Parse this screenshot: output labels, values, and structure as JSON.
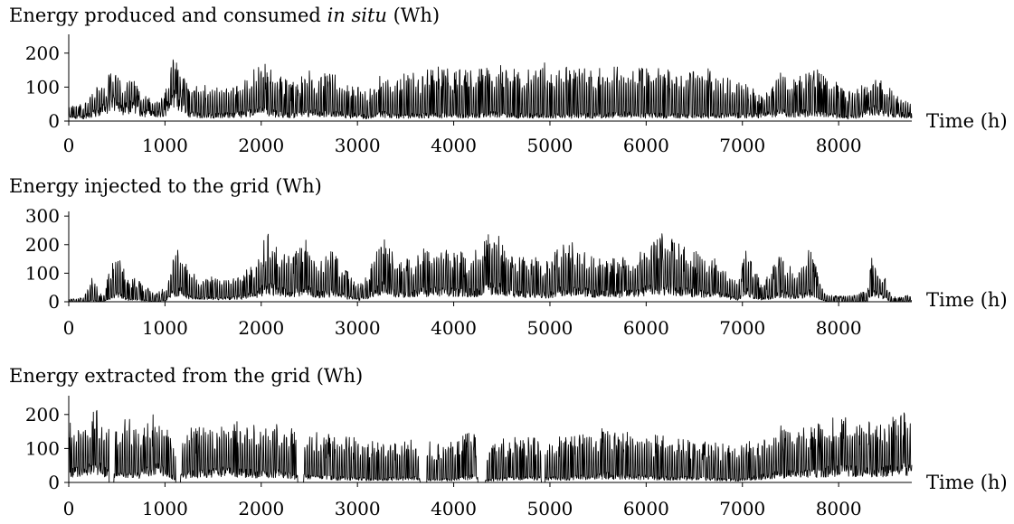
{
  "chart_data": [
    {
      "type": "line",
      "title": "Energy produced and consumed",
      "title_italic": "in situ",
      "title_unit": "(Wh)",
      "xlabel": "Time (h)",
      "ylabel": "",
      "xlim": [
        0,
        8760
      ],
      "ylim": [
        0,
        250
      ],
      "xticks": [
        0,
        1000,
        2000,
        3000,
        4000,
        5000,
        6000,
        7000,
        8000
      ],
      "yticks": [
        0,
        100,
        200
      ],
      "grid": false,
      "series": [
        {
          "color": "#000000",
          "style": "hourly-spiky",
          "envelope_x": [
            0,
            150,
            250,
            400,
            480,
            560,
            650,
            750,
            900,
            1000,
            1080,
            1150,
            1250,
            1400,
            1600,
            1800,
            1900,
            2000,
            2100,
            2200,
            2300,
            2500,
            2700,
            2800,
            2900,
            3000,
            3100,
            3250,
            3400,
            3600,
            3800,
            4000,
            4200,
            4400,
            4600,
            4800,
            4900,
            5000,
            5200,
            5400,
            5600,
            5800,
            6000,
            6200,
            6400,
            6600,
            6800,
            7000,
            7100,
            7200,
            7300,
            7400,
            7500,
            7600,
            7800,
            8000,
            8100,
            8200,
            8300,
            8400,
            8500,
            8600,
            8760
          ],
          "envelope_y": [
            45,
            50,
            100,
            130,
            165,
            110,
            140,
            80,
            75,
            85,
            200,
            170,
            95,
            110,
            100,
            120,
            150,
            170,
            165,
            140,
            110,
            150,
            145,
            140,
            105,
            120,
            90,
            140,
            135,
            150,
            160,
            165,
            150,
            170,
            160,
            150,
            190,
            155,
            160,
            160,
            160,
            165,
            160,
            160,
            140,
            160,
            140,
            130,
            100,
            80,
            95,
            180,
            120,
            140,
            160,
            110,
            95,
            100,
            115,
            150,
            110,
            75,
            65
          ],
          "base_y": [
            15,
            15,
            25,
            50,
            60,
            40,
            55,
            30,
            25,
            30,
            90,
            70,
            25,
            20,
            20,
            25,
            30,
            35,
            30,
            25,
            20,
            30,
            25,
            25,
            20,
            20,
            15,
            25,
            20,
            20,
            20,
            20,
            20,
            25,
            20,
            20,
            20,
            20,
            20,
            20,
            20,
            25,
            20,
            20,
            20,
            20,
            20,
            20,
            20,
            20,
            25,
            35,
            25,
            30,
            25,
            20,
            15,
            20,
            35,
            45,
            30,
            25,
            20
          ]
        }
      ]
    },
    {
      "type": "line",
      "title": "Energy injected to the grid (Wh)",
      "xlabel": "Time (h)",
      "ylabel": "",
      "xlim": [
        0,
        8760
      ],
      "ylim": [
        0,
        310
      ],
      "xticks": [
        0,
        1000,
        2000,
        3000,
        4000,
        5000,
        6000,
        7000,
        8000
      ],
      "yticks": [
        0,
        100,
        200,
        300
      ],
      "grid": false,
      "series": [
        {
          "color": "#000000",
          "style": "hourly-spiky",
          "envelope_x": [
            0,
            150,
            250,
            350,
            450,
            500,
            600,
            700,
            800,
            900,
            1000,
            1100,
            1150,
            1250,
            1400,
            1600,
            1800,
            1950,
            2050,
            2150,
            2300,
            2450,
            2600,
            2750,
            2900,
            3000,
            3100,
            3250,
            3400,
            3600,
            3800,
            4000,
            4200,
            4350,
            4450,
            4600,
            4800,
            5000,
            5150,
            5300,
            5500,
            5700,
            5900,
            6000,
            6200,
            6400,
            6600,
            6800,
            6950,
            7050,
            7200,
            7400,
            7550,
            7700,
            7800,
            7900,
            8000,
            8150,
            8300,
            8350,
            8450,
            8550,
            8650,
            8760
          ],
          "envelope_y": [
            10,
            15,
            90,
            15,
            140,
            200,
            90,
            80,
            55,
            30,
            50,
            190,
            200,
            105,
            90,
            90,
            100,
            150,
            245,
            220,
            160,
            230,
            140,
            190,
            105,
            60,
            90,
            250,
            150,
            180,
            200,
            180,
            170,
            240,
            260,
            160,
            170,
            150,
            230,
            200,
            150,
            160,
            160,
            220,
            250,
            200,
            160,
            150,
            70,
            200,
            55,
            170,
            100,
            200,
            80,
            25,
            20,
            25,
            40,
            170,
            115,
            20,
            15,
            35
          ],
          "base_y": [
            0,
            0,
            5,
            0,
            20,
            40,
            10,
            10,
            5,
            0,
            5,
            40,
            50,
            20,
            15,
            15,
            20,
            30,
            60,
            50,
            35,
            55,
            30,
            40,
            20,
            10,
            20,
            60,
            35,
            40,
            45,
            40,
            40,
            55,
            60,
            35,
            35,
            30,
            50,
            45,
            35,
            35,
            35,
            50,
            55,
            45,
            35,
            30,
            10,
            40,
            10,
            35,
            20,
            40,
            15,
            0,
            0,
            0,
            5,
            40,
            25,
            0,
            0,
            5
          ]
        }
      ]
    },
    {
      "type": "line",
      "title": "Energy extracted from the grid (Wh)",
      "xlabel": "Time (h)",
      "ylabel": "",
      "xlim": [
        0,
        8760
      ],
      "ylim": [
        0,
        250
      ],
      "xticks": [
        0,
        1000,
        2000,
        3000,
        4000,
        5000,
        6000,
        7000,
        8000
      ],
      "yticks": [
        0,
        100,
        200
      ],
      "grid": false,
      "series": [
        {
          "color": "#000000",
          "style": "hourly-spiky",
          "envelope_x": [
            0,
            150,
            300,
            420,
            500,
            600,
            700,
            800,
            900,
            1000,
            1100,
            1200,
            1400,
            1600,
            1800,
            2000,
            2200,
            2400,
            2600,
            2800,
            3000,
            3200,
            3400,
            3600,
            3700,
            3800,
            4000,
            4200,
            4300,
            4400,
            4600,
            4800,
            5000,
            5200,
            5400,
            5600,
            5800,
            6000,
            6200,
            6400,
            6600,
            6800,
            7000,
            7200,
            7400,
            7600,
            7800,
            8000,
            8200,
            8400,
            8550,
            8650,
            8760
          ],
          "envelope_y": [
            185,
            190,
            215,
            175,
            150,
            200,
            170,
            190,
            205,
            185,
            120,
            160,
            185,
            190,
            180,
            170,
            180,
            150,
            150,
            140,
            135,
            120,
            130,
            125,
            120,
            125,
            130,
            150,
            100,
            120,
            135,
            140,
            140,
            140,
            150,
            165,
            150,
            145,
            140,
            130,
            120,
            115,
            115,
            135,
            170,
            165,
            175,
            200,
            190,
            175,
            200,
            230,
            200
          ],
          "base_y": [
            35,
            40,
            55,
            30,
            20,
            35,
            25,
            40,
            50,
            40,
            15,
            25,
            35,
            40,
            35,
            30,
            35,
            20,
            20,
            15,
            15,
            10,
            15,
            15,
            10,
            10,
            10,
            20,
            5,
            10,
            15,
            15,
            15,
            15,
            20,
            25,
            20,
            20,
            15,
            15,
            15,
            10,
            10,
            20,
            30,
            30,
            35,
            45,
            40,
            35,
            45,
            55,
            45
          ],
          "gaps": [
            [
              420,
              470
            ],
            [
              1110,
              1160
            ],
            [
              2380,
              2440
            ],
            [
              3650,
              3720
            ],
            [
              4250,
              4330
            ],
            [
              4910,
              4950
            ]
          ]
        }
      ]
    }
  ]
}
